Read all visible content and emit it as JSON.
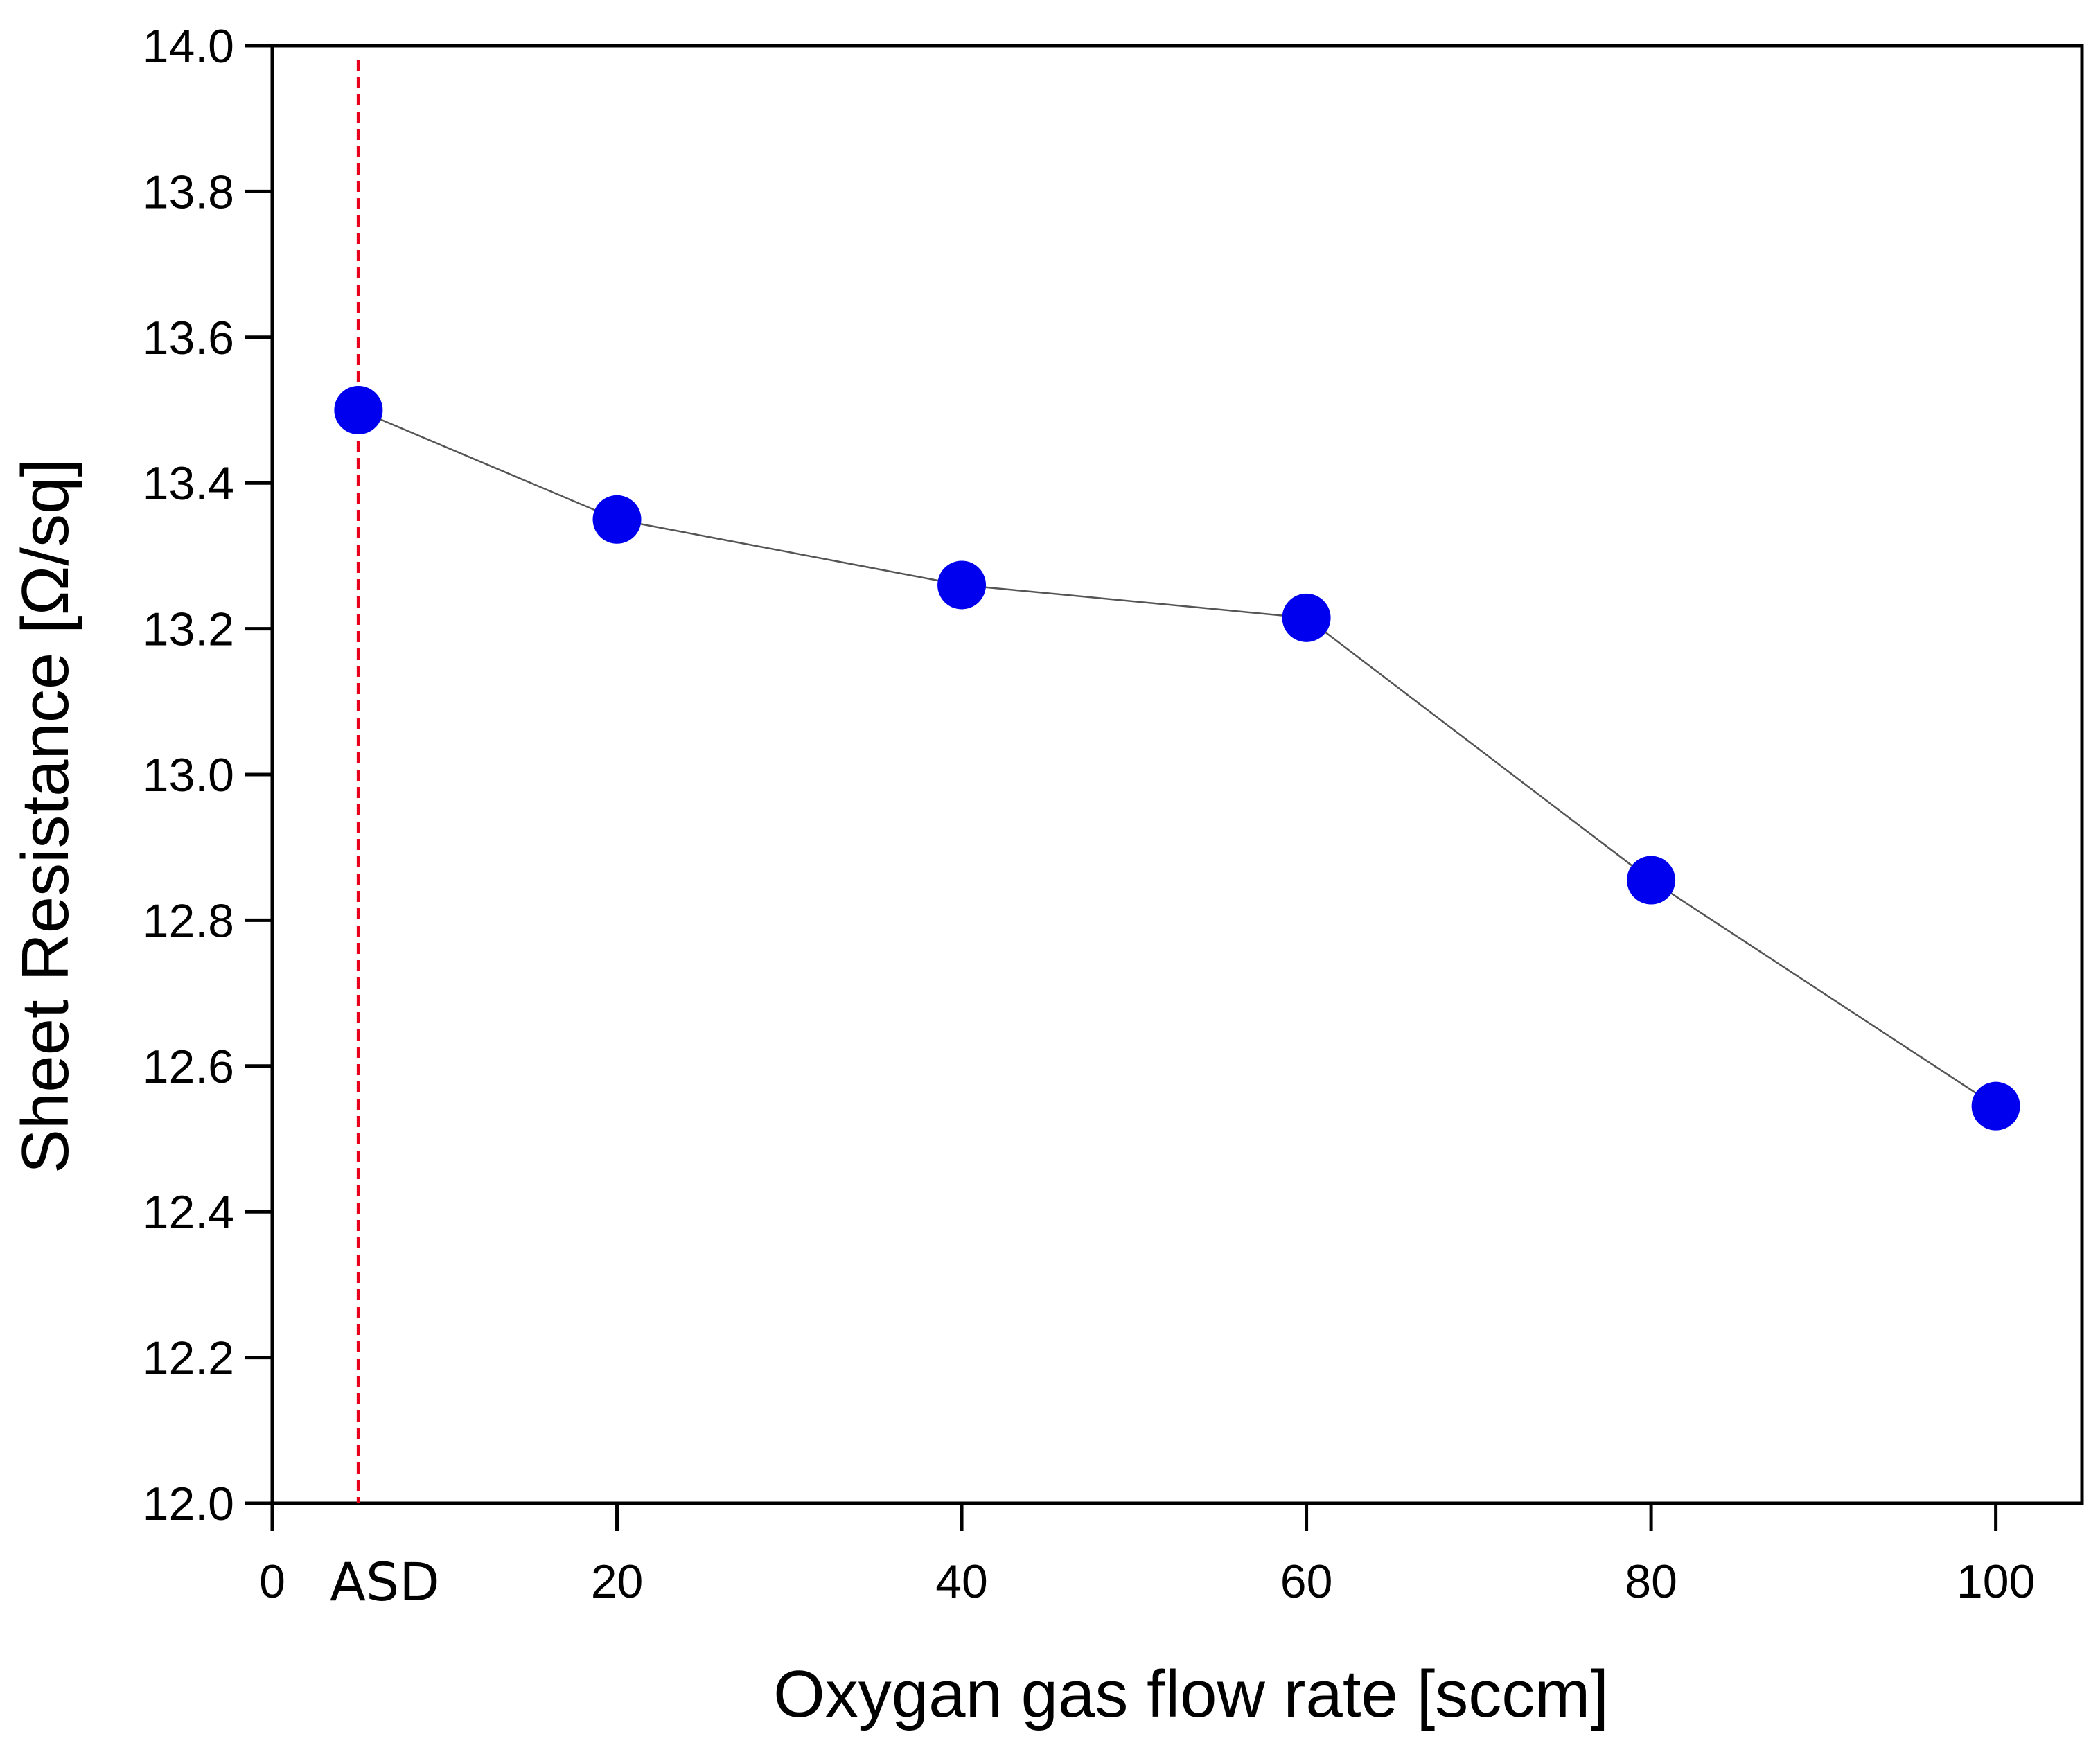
{
  "chart_data": {
    "type": "line",
    "title": "",
    "xlabel": "Oxygan gas flow rate [sccm]",
    "ylabel": "Sheet Resistance [Ω/sq]",
    "xlim": [
      0,
      105
    ],
    "ylim": [
      12.0,
      14.0
    ],
    "x_ticks": [
      0,
      20,
      40,
      60,
      80,
      100
    ],
    "x_tick_labels": [
      "0",
      "20",
      "40",
      "60",
      "80",
      "100"
    ],
    "y_ticks": [
      12.0,
      12.2,
      12.4,
      12.6,
      12.8,
      13.0,
      13.2,
      13.4,
      13.6,
      13.8,
      14.0
    ],
    "y_tick_labels": [
      "12.0",
      "12.2",
      "12.4",
      "12.6",
      "12.8",
      "13.0",
      "13.2",
      "13.4",
      "13.6",
      "13.8",
      "14.0"
    ],
    "grid": false,
    "series": [
      {
        "x": [
          5,
          20,
          40,
          60,
          80,
          100
        ],
        "y": [
          13.5,
          13.35,
          13.26,
          13.215,
          12.855,
          12.545
        ],
        "marker_color": "#0000ee",
        "line_color": "#555555"
      }
    ],
    "annotations": [
      {
        "text": "ASD",
        "x": 5,
        "style": "vertical-dashed-line",
        "color": "#e8001c"
      }
    ]
  }
}
